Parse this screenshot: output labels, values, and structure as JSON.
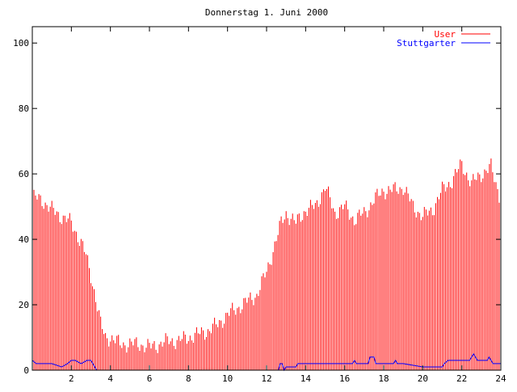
{
  "chart_data": {
    "type": "bar",
    "title": "Donnerstag 1. Juni 2000",
    "xlabel": "",
    "ylabel": "",
    "xlim": [
      0,
      24
    ],
    "ylim": [
      0,
      105
    ],
    "x_ticks": [
      {
        "value": 2,
        "label": "2"
      },
      {
        "value": 4,
        "label": "4"
      },
      {
        "value": 6,
        "label": "6"
      },
      {
        "value": 8,
        "label": "8"
      },
      {
        "value": 10,
        "label": "10"
      },
      {
        "value": 12,
        "label": "12"
      },
      {
        "value": 14,
        "label": "14"
      },
      {
        "value": 16,
        "label": "16"
      },
      {
        "value": 18,
        "label": "18"
      },
      {
        "value": 20,
        "label": "20"
      },
      {
        "value": 22,
        "label": "22"
      },
      {
        "value": 24,
        "label": "24"
      }
    ],
    "y_ticks": [
      {
        "value": 0,
        "label": "0"
      },
      {
        "value": 20,
        "label": "20"
      },
      {
        "value": 40,
        "label": "40"
      },
      {
        "value": 60,
        "label": "60"
      },
      {
        "value": 80,
        "label": "80"
      },
      {
        "value": 100,
        "label": "100"
      }
    ],
    "grid": false,
    "legend_position": "top-right",
    "series": [
      {
        "name": "User",
        "style": "impulses",
        "color": "#ff0000",
        "x": [
          0.0,
          0.5,
          1.0,
          1.5,
          2.0,
          2.25,
          2.5,
          2.75,
          3.0,
          3.25,
          3.5,
          3.75,
          4.0,
          4.5,
          5.0,
          5.5,
          6.0,
          6.5,
          7.0,
          7.5,
          8.0,
          8.5,
          9.0,
          9.5,
          10.0,
          10.5,
          11.0,
          11.5,
          12.0,
          12.5,
          12.75,
          13.0,
          13.5,
          14.0,
          14.5,
          15.0,
          15.5,
          16.0,
          16.5,
          17.0,
          17.5,
          18.0,
          18.5,
          19.0,
          19.5,
          20.0,
          20.5,
          21.0,
          21.5,
          22.0,
          22.5,
          23.0,
          23.5,
          24.0
        ],
        "values": [
          53,
          52,
          49,
          47,
          45,
          42,
          39,
          35,
          29,
          22,
          14,
          10,
          10,
          8,
          8,
          8,
          7,
          8,
          9,
          9,
          10,
          11,
          12,
          14,
          17,
          19,
          21,
          23,
          30,
          40,
          45,
          48,
          45,
          49,
          50,
          56,
          48,
          50,
          46,
          48,
          52,
          55,
          55,
          56,
          50,
          47,
          49,
          55,
          58,
          63,
          57,
          60,
          62,
          52
        ]
      },
      {
        "name": "Stuttgarter",
        "style": "lines",
        "color": "#0000ff",
        "x": [
          0.0,
          0.2,
          0.5,
          1.0,
          1.5,
          1.8,
          2.0,
          2.2,
          2.5,
          2.8,
          3.0,
          3.1,
          3.2,
          3.3,
          3.4,
          3.5,
          12.6,
          12.7,
          12.8,
          12.9,
          13.0,
          13.3,
          13.5,
          13.6,
          14.0,
          15.0,
          16.0,
          16.4,
          16.5,
          16.6,
          16.8,
          17.0,
          17.2,
          17.3,
          17.5,
          17.6,
          18.0,
          18.5,
          18.6,
          18.7,
          19.0,
          20.0,
          21.0,
          21.1,
          21.3,
          21.5,
          22.0,
          22.4,
          22.5,
          22.6,
          22.8,
          23.0,
          23.3,
          23.4,
          23.5,
          23.6,
          23.8,
          24.0
        ],
        "values": [
          3,
          2,
          2,
          2,
          1,
          2,
          3,
          3,
          2,
          3,
          3,
          2,
          1,
          0,
          0,
          0,
          0,
          2,
          2,
          0,
          1,
          1,
          1,
          2,
          2,
          2,
          2,
          2,
          3,
          2,
          2,
          2,
          2,
          4,
          4,
          2,
          2,
          2,
          3,
          2,
          2,
          1,
          1,
          2,
          3,
          3,
          3,
          3,
          4,
          5,
          3,
          3,
          3,
          4,
          3,
          2,
          2,
          2
        ]
      }
    ]
  }
}
